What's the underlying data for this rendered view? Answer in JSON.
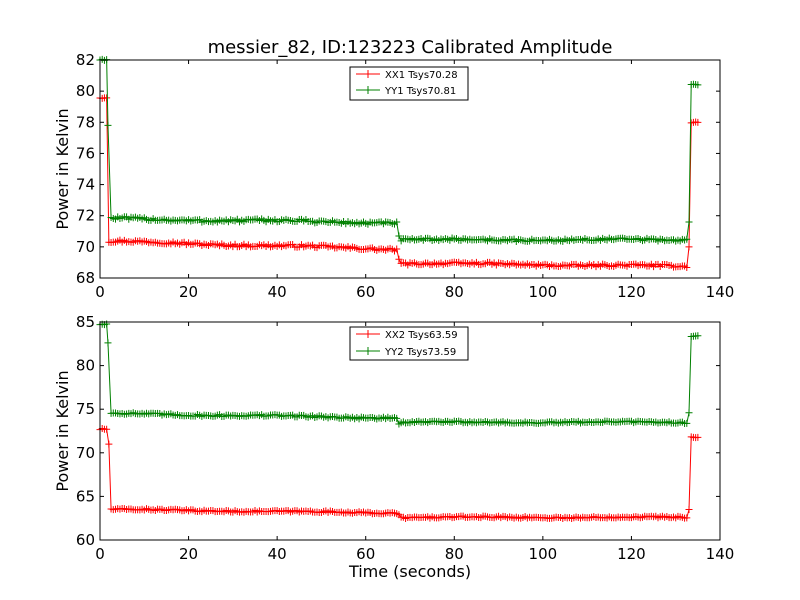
{
  "colors": {
    "xx": "#ff0000",
    "yy": "#008000",
    "axes": "#000000",
    "background": "#ffffff"
  },
  "chart_data": [
    {
      "type": "line",
      "title": "messier_82, ID:123223 Calibrated Amplitude",
      "xlabel": "",
      "ylabel": "Power in Kelvin",
      "xlim": [
        0,
        140
      ],
      "ylim": [
        68,
        82
      ],
      "xticks": [
        "0",
        "20",
        "40",
        "60",
        "80",
        "100",
        "120",
        "140"
      ],
      "yticks": [
        "68",
        "70",
        "72",
        "74",
        "76",
        "78",
        "80",
        "82"
      ],
      "grid": false,
      "legend_position": "top-center",
      "series": [
        {
          "name": "XX1 Tsys70.28",
          "color": "#ff0000",
          "marker": "+",
          "segments": [
            {
              "x_start": 0,
              "x_end": 1.5,
              "value": 79.6,
              "noise": 0.08
            },
            {
              "x_start": 2.5,
              "x_end": 67,
              "value_start": 70.35,
              "value_end": 69.85,
              "noise": 0.09
            },
            {
              "x_start": 68,
              "x_end": 132.5,
              "value_start": 68.95,
              "value_end": 68.75,
              "noise": 0.08
            },
            {
              "x_start": 133.5,
              "x_end": 135,
              "value": 78.0,
              "noise": 0.05
            }
          ],
          "transitions": [
            {
              "x": 2,
              "value": 70.3
            },
            {
              "x": 67.5,
              "value": 69.2
            },
            {
              "x": 133,
              "value": 70.0
            }
          ]
        },
        {
          "name": "YY1 Tsys70.81",
          "color": "#008000",
          "marker": "+",
          "segments": [
            {
              "x_start": 0,
              "x_end": 1.5,
              "value": 82.0,
              "noise": 0.05
            },
            {
              "x_start": 2.5,
              "x_end": 67,
              "value_start": 71.8,
              "value_end": 71.55,
              "noise": 0.1
            },
            {
              "x_start": 68,
              "x_end": 132.5,
              "value": 70.45,
              "noise": 0.08
            },
            {
              "x_start": 133.5,
              "x_end": 135,
              "value": 80.45,
              "noise": 0.05
            }
          ],
          "transitions": [
            {
              "x": 1.8,
              "value": 77.8
            },
            {
              "x": 67.5,
              "value": 70.7
            },
            {
              "x": 133,
              "value": 71.6
            }
          ]
        }
      ]
    },
    {
      "type": "line",
      "title": "",
      "xlabel": "Time (seconds)",
      "ylabel": "Power in Kelvin",
      "xlim": [
        0,
        140
      ],
      "ylim": [
        60,
        85
      ],
      "xticks": [
        "0",
        "20",
        "40",
        "60",
        "80",
        "100",
        "120",
        "140"
      ],
      "yticks": [
        "60",
        "65",
        "70",
        "75",
        "80",
        "85"
      ],
      "grid": false,
      "legend_position": "top-center",
      "series": [
        {
          "name": "XX2 Tsys63.59",
          "color": "#ff0000",
          "marker": "+",
          "segments": [
            {
              "x_start": 0,
              "x_end": 1.5,
              "value": 72.7,
              "noise": 0.1
            },
            {
              "x_start": 2.5,
              "x_end": 67,
              "value_start": 63.5,
              "value_end": 63.1,
              "noise": 0.1
            },
            {
              "x_start": 68,
              "x_end": 132.5,
              "value": 62.6,
              "noise": 0.1
            },
            {
              "x_start": 133.5,
              "x_end": 135,
              "value": 71.8,
              "noise": 0.05
            }
          ],
          "transitions": [
            {
              "x": 2,
              "value": 71.0
            },
            {
              "x": 67.5,
              "value": 62.9
            },
            {
              "x": 133,
              "value": 63.5
            }
          ]
        },
        {
          "name": "YY2 Tsys73.59",
          "color": "#008000",
          "marker": "+",
          "segments": [
            {
              "x_start": 0,
              "x_end": 1.5,
              "value": 84.7,
              "noise": 0.08
            },
            {
              "x_start": 2.5,
              "x_end": 67,
              "value_start": 74.5,
              "value_end": 74.0,
              "noise": 0.12
            },
            {
              "x_start": 68,
              "x_end": 132.5,
              "value": 73.5,
              "noise": 0.1
            },
            {
              "x_start": 133.5,
              "x_end": 135,
              "value": 83.4,
              "noise": 0.05
            }
          ],
          "transitions": [
            {
              "x": 1.8,
              "value": 82.6
            },
            {
              "x": 67.5,
              "value": 73.3
            },
            {
              "x": 133,
              "value": 74.6
            }
          ]
        }
      ]
    }
  ]
}
